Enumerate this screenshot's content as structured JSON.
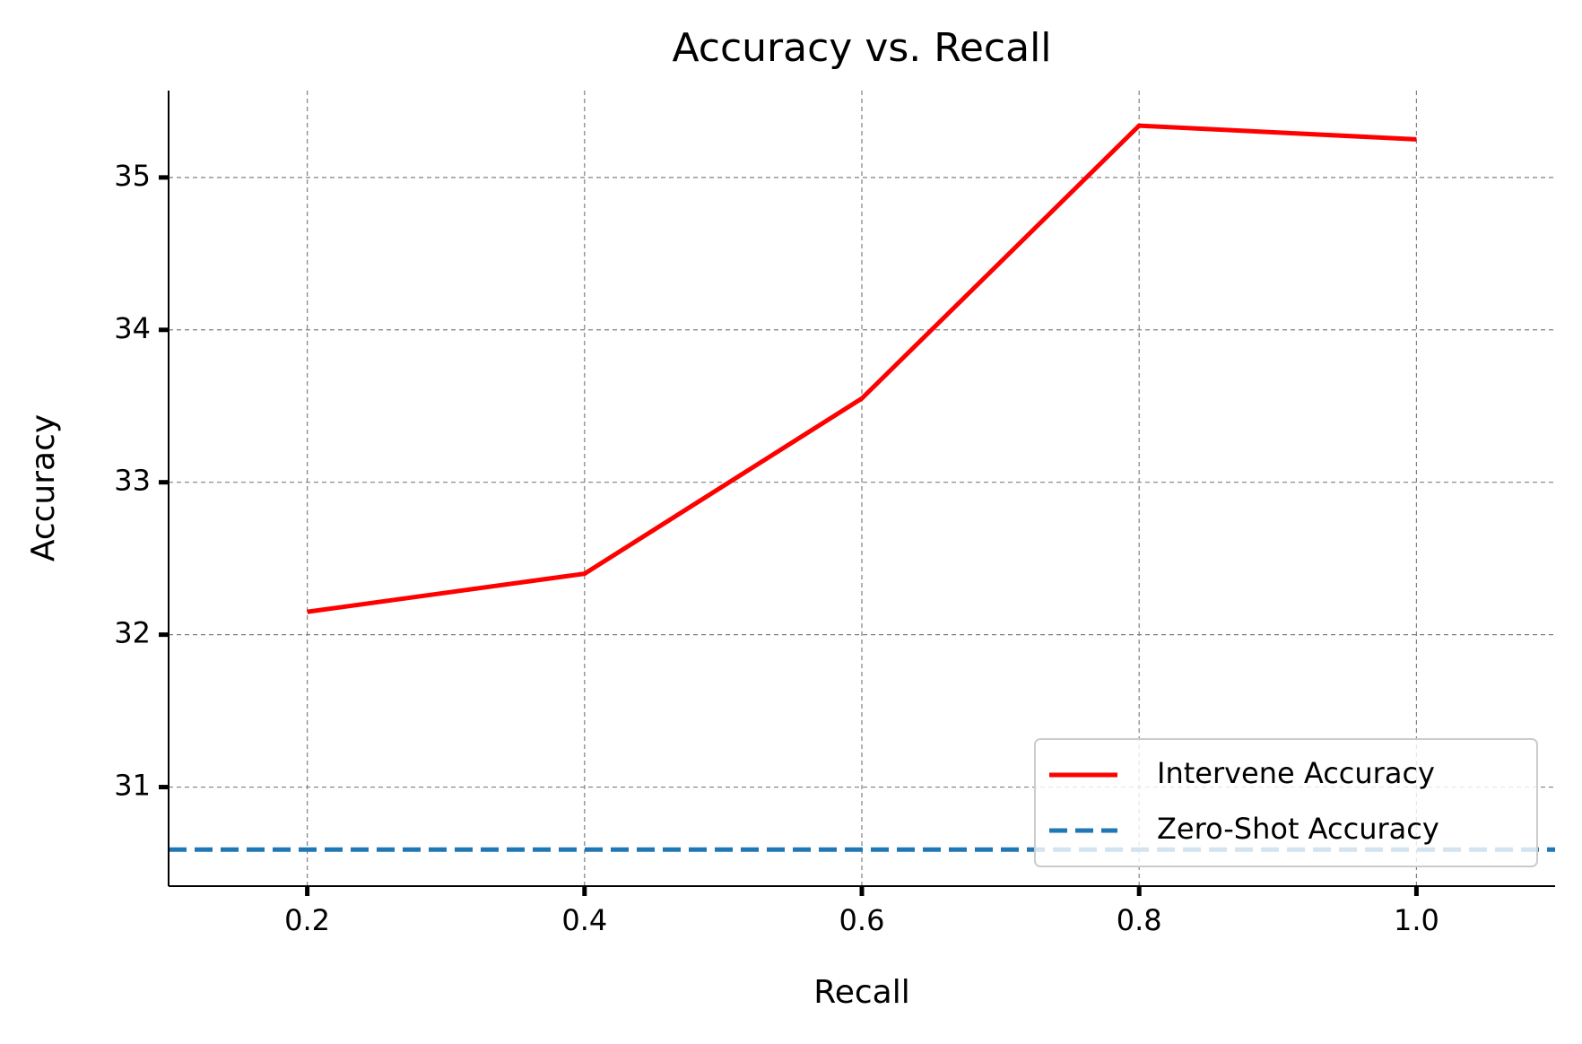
{
  "chart_data": {
    "type": "line",
    "title": "Accuracy vs. Recall",
    "x_label": "Recall",
    "y_label": "Accuracy",
    "x": [
      0.2,
      0.4,
      0.6,
      0.8,
      1.0
    ],
    "series": [
      {
        "name": "Intervene Accuracy",
        "color": "#ff0000",
        "values": [
          32.15,
          32.4,
          33.55,
          35.34,
          35.25
        ]
      }
    ],
    "reference_lines": [
      {
        "name": "Zero-Shot Accuracy",
        "color": "#1f77b4",
        "value": 30.59,
        "style": "dashed"
      }
    ],
    "xlim": [
      0.1,
      1.1
    ],
    "ylim": [
      30.35,
      35.57
    ],
    "xticks": [
      0.2,
      0.4,
      0.6,
      0.8,
      {
        "value": 1.0,
        "label": "1.0"
      }
    ],
    "yticks": [
      31,
      32,
      33,
      34,
      35
    ],
    "grid": true,
    "legend": "lower right"
  }
}
